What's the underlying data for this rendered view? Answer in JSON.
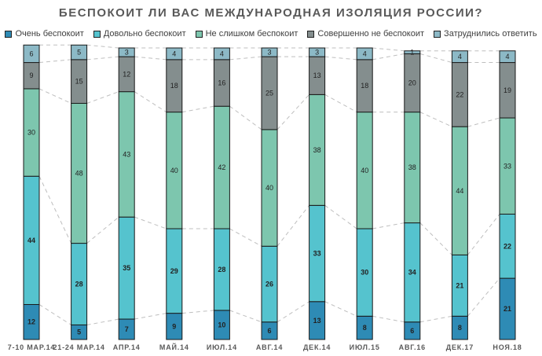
{
  "chart_data": {
    "type": "bar",
    "stacked": true,
    "title": "БЕСПОКОИТ ЛИ ВАС МЕЖДУНАРОДНАЯ ИЗОЛЯЦИЯ РОССИИ?",
    "categories": [
      "7-10 МАР.14",
      "21-24 МАР.14",
      "АПР.14",
      "МАЙ.14",
      "ИЮЛ.14",
      "АВГ.14",
      "ДЕК.14",
      "ИЮЛ.15",
      "АВГ.16",
      "ДЕК.17",
      "НОЯ.18"
    ],
    "series": [
      {
        "name": "Очень  беспокоит",
        "color": "#2E8BB5",
        "values": [
          12,
          5,
          7,
          9,
          10,
          6,
          13,
          8,
          6,
          8,
          21
        ]
      },
      {
        "name": "Довольно беспокоит",
        "color": "#55C3CE",
        "values": [
          44,
          28,
          35,
          29,
          28,
          26,
          33,
          30,
          34,
          21,
          22
        ]
      },
      {
        "name": "Не слишком беспокоит",
        "color": "#7DC6AE",
        "values": [
          30,
          48,
          43,
          40,
          42,
          40,
          38,
          40,
          38,
          44,
          33
        ]
      },
      {
        "name": "Совершенно не беспокоит",
        "color": "#848E8E",
        "values": [
          9,
          15,
          12,
          18,
          16,
          25,
          13,
          18,
          20,
          22,
          19
        ]
      },
      {
        "name": "Затруднились ответить",
        "color": "#8CB9C6",
        "values": [
          6,
          5,
          3,
          4,
          4,
          3,
          3,
          4,
          1,
          4,
          4
        ]
      }
    ],
    "legend_position": "top",
    "grid": false,
    "connector_lines": "dashed"
  }
}
